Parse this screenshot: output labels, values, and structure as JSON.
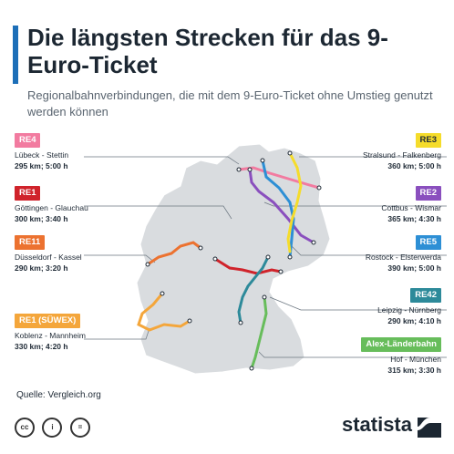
{
  "title": "Die längsten Strecken für das 9-Euro-Ticket",
  "subtitle": "Regionalbahnverbindungen, die mit dem 9-Euro-Ticket ohne Umstieg genutzt werden können",
  "routes": [
    {
      "badge": "RE4",
      "route": "Lübeck - Stettin",
      "dist": "295 km; 5:00 h",
      "color": "#f27ba0"
    },
    {
      "badge": "RE1",
      "route": "Göttingen - Glauchau",
      "dist": "300 km; 3:40 h",
      "color": "#d0232b"
    },
    {
      "badge": "RE11",
      "route": "Düsseldorf - Kassel",
      "dist": "290 km; 3:20 h",
      "color": "#ec7230"
    },
    {
      "badge": "RE1 (SÜWEX)",
      "route": "Koblenz - Mannheim",
      "dist": "330 km; 4:20 h",
      "color": "#f4a63b"
    },
    {
      "badge": "RE3",
      "route": "Stralsund - Falkenberg",
      "dist": "360 km; 5:00 h",
      "color": "#f5dc2b"
    },
    {
      "badge": "RE2",
      "route": "Cottbus - Wismar",
      "dist": "365 km; 4:30 h",
      "color": "#8a4fbe"
    },
    {
      "badge": "RE5",
      "route": "Rostock - Elsterwerda",
      "dist": "390 km; 5:00 h",
      "color": "#2d8fd5"
    },
    {
      "badge": "RE42",
      "route": "Leipzig - Nürnberg",
      "dist": "290 km; 4:10 h",
      "color": "#2d8a9a"
    },
    {
      "badge": "Alex-Länderbahn",
      "route": "Hof - München",
      "dist": "315 km; 3:30 h",
      "color": "#67bd5b"
    }
  ],
  "source": "Quelle: Vergleich.org",
  "licence": {
    "cc": "cc",
    "by": "i",
    "nd": "="
  },
  "brand": "statista"
}
